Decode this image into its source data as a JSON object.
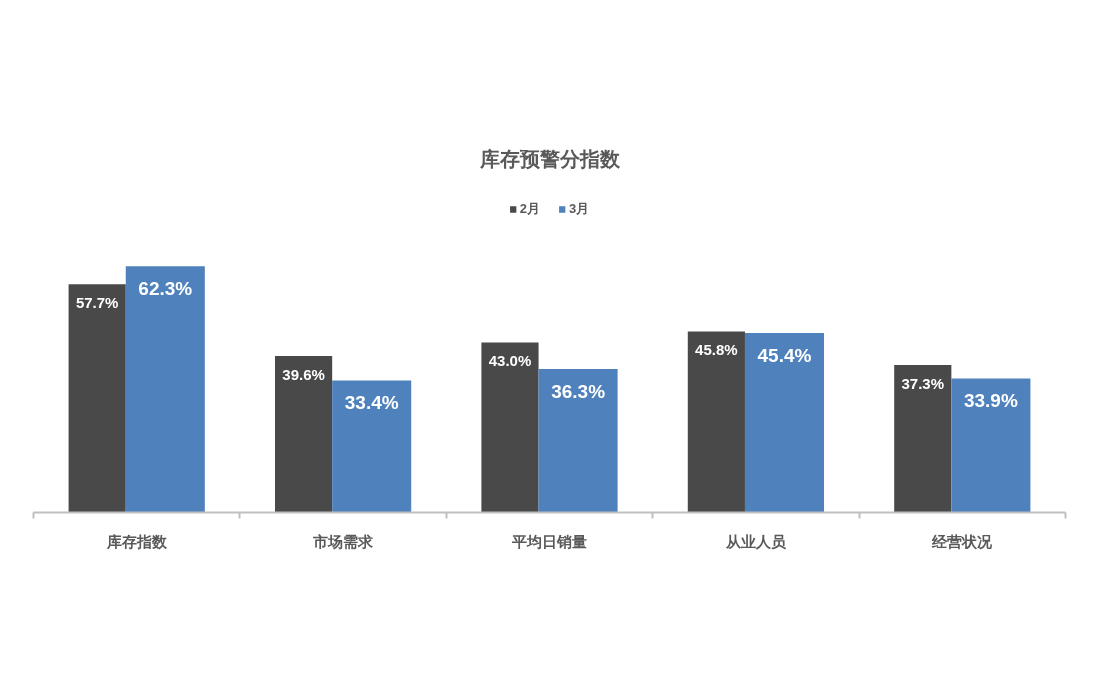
{
  "chart_data": {
    "type": "bar",
    "title": "库存预警分指数",
    "legend": "top",
    "categories": [
      "库存指数",
      "市场需求",
      "平均日销量",
      "从业人员",
      "经营状况"
    ],
    "series": [
      {
        "name": "2月",
        "color": "#494949",
        "values": [
          57.7,
          39.6,
          43.0,
          45.8,
          37.3
        ],
        "value_labels": [
          "57.7%",
          "39.6%",
          "43.0%",
          "45.8%",
          "37.3%"
        ]
      },
      {
        "name": "3月",
        "color": "#4f81bd",
        "values": [
          62.3,
          33.4,
          36.3,
          45.4,
          33.9
        ],
        "value_labels": [
          "62.3%",
          "33.4%",
          "36.3%",
          "45.4%",
          "33.9%"
        ]
      }
    ]
  }
}
